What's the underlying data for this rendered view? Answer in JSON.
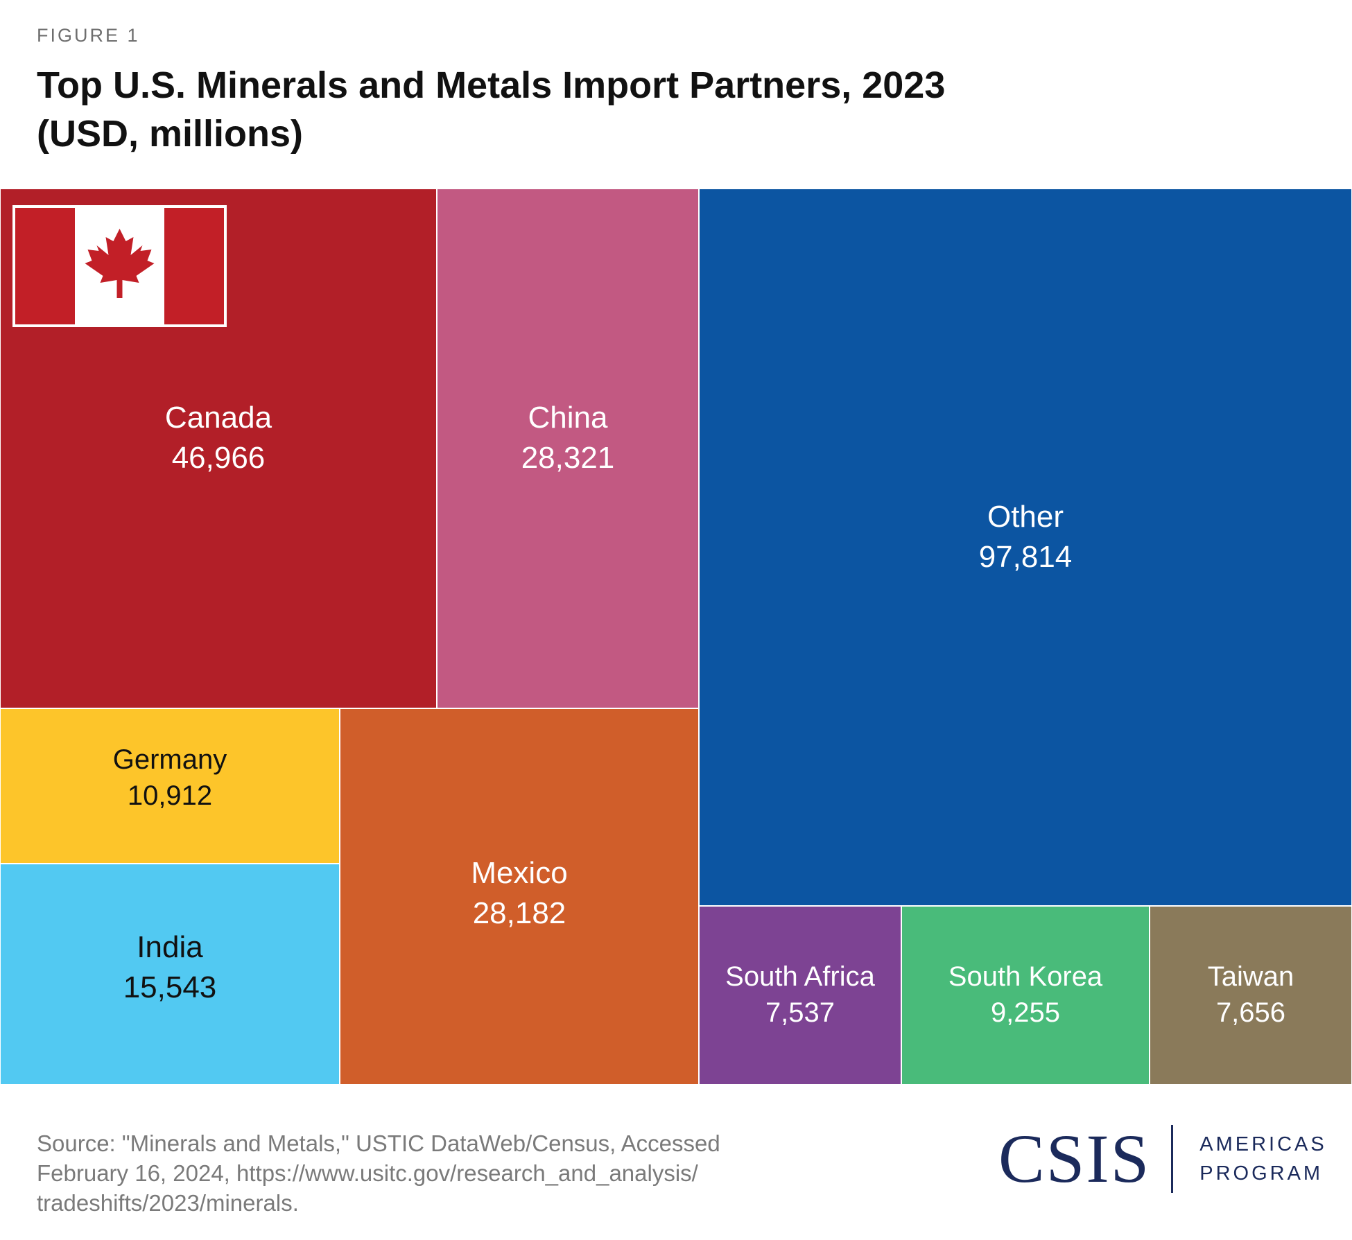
{
  "figure_label": "FIGURE 1",
  "title_line1": "Top U.S. Minerals and Metals Import Partners, 2023",
  "title_line2": "(USD, millions)",
  "source_line1": "Source: \"Minerals and Metals,\" USTIC DataWeb/Census, Accessed",
  "source_line2": "February 16, 2024, https://www.usitc.gov/research_and_analysis/",
  "source_line3": "tradeshifts/2023/minerals.",
  "logo": {
    "mark": "CSIS",
    "program_line1": "AMERICAS",
    "program_line2": "PROGRAM",
    "color": "#1b2a5b"
  },
  "flag_icon": "canada-flag-icon",
  "chart_data": {
    "type": "treemap",
    "title": "Top U.S. Minerals and Metals Import Partners, 2023",
    "subtitle": "(USD, millions)",
    "items": [
      {
        "name": "Canada",
        "value": 46966,
        "label": "46,966",
        "color": "#b21f28",
        "text_color": "#ffffff"
      },
      {
        "name": "China",
        "value": 28321,
        "label": "28,321",
        "color": "#c25982",
        "text_color": "#ffffff"
      },
      {
        "name": "Other",
        "value": 97814,
        "label": "97,814",
        "color": "#0c55a2",
        "text_color": "#ffffff"
      },
      {
        "name": "Germany",
        "value": 10912,
        "label": "10,912",
        "color": "#fdc52a",
        "text_color": "#111111"
      },
      {
        "name": "India",
        "value": 15543,
        "label": "15,543",
        "color": "#52c9f2",
        "text_color": "#111111"
      },
      {
        "name": "Mexico",
        "value": 28182,
        "label": "28,182",
        "color": "#d05e2a",
        "text_color": "#ffffff"
      },
      {
        "name": "South Africa",
        "value": 7537,
        "label": "7,537",
        "color": "#7d4393",
        "text_color": "#ffffff"
      },
      {
        "name": "South Korea",
        "value": 9255,
        "label": "9,255",
        "color": "#49bb7a",
        "text_color": "#ffffff"
      },
      {
        "name": "Taiwan",
        "value": 7656,
        "label": "7,656",
        "color": "#8a7a5a",
        "text_color": "#ffffff"
      }
    ]
  }
}
